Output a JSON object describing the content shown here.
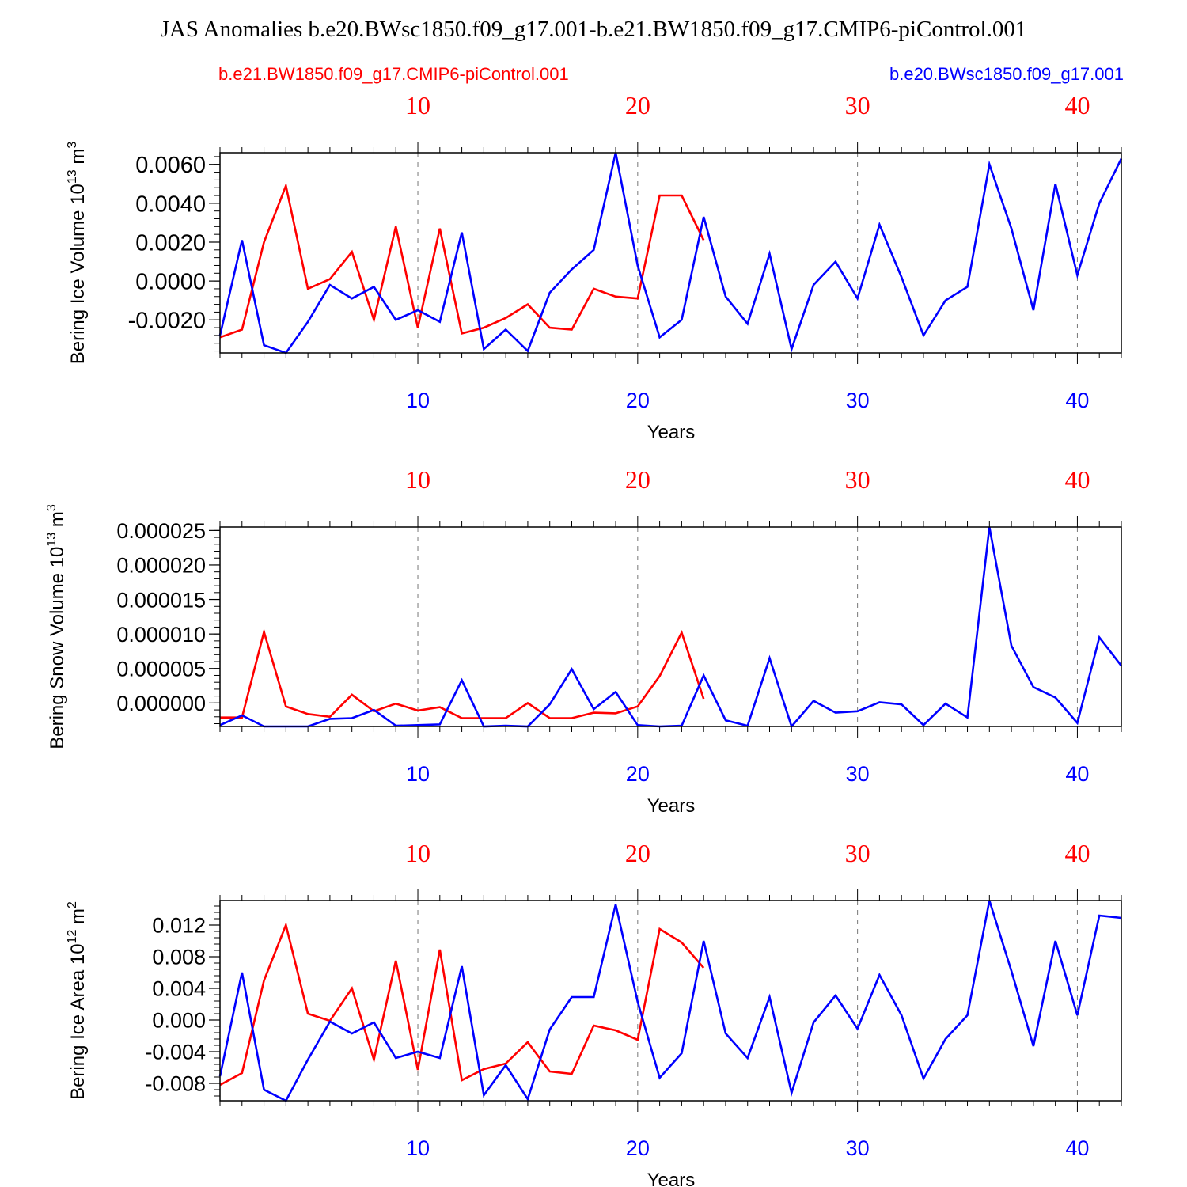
{
  "figure": {
    "title": "JAS Anomalies b.e20.BWsc1850.f09_g17.001-b.e21.BW1850.f09_g17.CMIP6-piControl.001",
    "legend_red": "b.e21.BW1850.f09_g17.CMIP6-piControl.001",
    "legend_blue": "b.e20.BWsc1850.f09_g17.001",
    "colors": {
      "red": "#ff0000",
      "blue": "#0000ff"
    }
  },
  "chart_data": [
    {
      "type": "line",
      "name": "ice-volume",
      "ylabel": "Bering Ice Volume 10",
      "ylabel_exp": "13",
      "ylabel_unit": " m",
      "ylabel_unit_exp": "3",
      "xlabel": "Years",
      "xlim": [
        1,
        42
      ],
      "ylim": [
        -0.0037,
        0.0066
      ],
      "yticks": [
        -0.002,
        0.0,
        0.002,
        0.004,
        0.006
      ],
      "ytick_labels": [
        "-0.0020",
        "0.0000",
        "0.0020",
        "0.0040",
        "0.0060"
      ],
      "xticks": [
        10,
        20,
        30,
        40
      ],
      "xtick_labels": [
        "10",
        "20",
        "30",
        "40"
      ],
      "series": [
        {
          "name": "b.e21.BW1850.f09_g17.CMIP6-piControl.001",
          "color": "red",
          "values": [
            -0.0029,
            -0.0025,
            0.002,
            0.0049,
            -0.0004,
            0.0001,
            0.0015,
            -0.002,
            0.0028,
            -0.0024,
            0.0027,
            -0.0027,
            -0.0024,
            -0.0019,
            -0.0012,
            -0.0024,
            -0.0025,
            -0.0004,
            -0.0008,
            -0.0009,
            0.0044,
            0.0044,
            0.0021
          ]
        },
        {
          "name": "b.e20.BWsc1850.f09_g17.001",
          "color": "blue",
          "values": [
            -0.0028,
            0.0021,
            -0.0033,
            -0.0037,
            -0.0021,
            -0.0002,
            -0.0009,
            -0.0003,
            -0.002,
            -0.0015,
            -0.0021,
            0.0025,
            -0.0035,
            -0.0025,
            -0.0036,
            -0.0006,
            0.0006,
            0.0016,
            0.0066,
            0.0008,
            -0.0029,
            -0.002,
            0.0033,
            -0.0008,
            -0.0022,
            0.0014,
            -0.0035,
            -0.0002,
            0.001,
            -0.0009,
            0.0029,
            0.0002,
            -0.0028,
            -0.001,
            -0.0003,
            0.006,
            0.0027,
            -0.0015,
            0.005,
            0.0003,
            0.004,
            0.0063
          ]
        }
      ]
    },
    {
      "type": "line",
      "name": "snow-volume",
      "ylabel": "Bering Snow Volume 10",
      "ylabel_exp": "13",
      "ylabel_unit": " m",
      "ylabel_unit_exp": "3",
      "xlabel": "Years",
      "xlim": [
        1,
        42
      ],
      "ylim": [
        -3.4e-06,
        2.55e-05
      ],
      "yticks": [
        0.0,
        5e-06,
        1e-05,
        1.5e-05,
        2e-05,
        2.5e-05
      ],
      "ytick_labels": [
        "0.000000",
        "0.000005",
        "0.000010",
        "0.000015",
        "0.000020",
        "0.000025"
      ],
      "xticks": [
        10,
        20,
        30,
        40
      ],
      "xtick_labels": [
        "10",
        "20",
        "30",
        "40"
      ],
      "series": [
        {
          "name": "b.e21.BW1850.f09_g17.CMIP6-piControl.001",
          "color": "red",
          "values": [
            -2.1e-06,
            -2.1e-06,
            1.03e-05,
            -5e-07,
            -1.6e-06,
            -2e-06,
            1.2e-06,
            -1.2e-06,
            -1e-07,
            -1.1e-06,
            -6e-07,
            -2.2e-06,
            -2.2e-06,
            -2.2e-06,
            0.0,
            -2.2e-06,
            -2.2e-06,
            -1.4e-06,
            -1.5e-06,
            -5e-07,
            3.9e-06,
            1.02e-05,
            6e-07
          ]
        },
        {
          "name": "b.e20.BWsc1850.f09_g17.001",
          "color": "blue",
          "values": [
            -3.2e-06,
            -1.8e-06,
            -3.4e-06,
            -3.4e-06,
            -3.4e-06,
            -2.3e-06,
            -2.2e-06,
            -1e-06,
            -3.3e-06,
            -3.2e-06,
            -3.1e-06,
            3.3e-06,
            -3.4e-06,
            -3.3e-06,
            -3.4e-06,
            -2e-07,
            4.9e-06,
            -9e-07,
            1.6e-06,
            -3.2e-06,
            -3.4e-06,
            -3.3e-06,
            4e-06,
            -2.5e-06,
            -3.3e-06,
            6.5e-06,
            -3.4e-06,
            3e-07,
            -1.4e-06,
            -1.2e-06,
            1e-07,
            -2e-07,
            -3.2e-06,
            -1e-07,
            -2.1e-06,
            2.55e-05,
            8.3e-06,
            2.3e-06,
            8e-07,
            -2.9e-06,
            9.5e-06,
            5.4e-06
          ]
        }
      ]
    },
    {
      "type": "line",
      "name": "ice-area",
      "ylabel": "Bering Ice Area 10",
      "ylabel_exp": "12",
      "ylabel_unit": " m",
      "ylabel_unit_exp": "2",
      "xlabel": "Years",
      "xlim": [
        1,
        42
      ],
      "ylim": [
        -0.0102,
        0.0151
      ],
      "yticks": [
        -0.008,
        -0.004,
        0.0,
        0.004,
        0.008,
        0.012
      ],
      "ytick_labels": [
        "-0.008",
        "-0.004",
        "0.000",
        "0.004",
        "0.008",
        "0.012"
      ],
      "xticks": [
        10,
        20,
        30,
        40
      ],
      "xtick_labels": [
        "10",
        "20",
        "30",
        "40"
      ],
      "series": [
        {
          "name": "b.e21.BW1850.f09_g17.CMIP6-piControl.001",
          "color": "red",
          "values": [
            -0.0082,
            -0.0067,
            0.005,
            0.012,
            0.0008,
            -0.0001,
            0.004,
            -0.005,
            0.0075,
            -0.0063,
            0.0089,
            -0.0076,
            -0.0062,
            -0.0055,
            -0.0028,
            -0.0065,
            -0.0068,
            -0.0007,
            -0.0013,
            -0.0025,
            0.0115,
            0.0098,
            0.0066
          ]
        },
        {
          "name": "b.e20.BWsc1850.f09_g17.001",
          "color": "blue",
          "values": [
            -0.0071,
            0.006,
            -0.0088,
            -0.0102,
            -0.005,
            -0.0002,
            -0.0017,
            -0.0003,
            -0.0048,
            -0.004,
            -0.0048,
            0.0068,
            -0.0095,
            -0.0057,
            -0.01,
            -0.0012,
            0.0029,
            0.0029,
            0.0146,
            0.0023,
            -0.0073,
            -0.0042,
            0.01,
            -0.0017,
            -0.0048,
            0.0029,
            -0.0092,
            -0.0003,
            0.0031,
            -0.0011,
            0.0057,
            0.0006,
            -0.0074,
            -0.0024,
            0.0006,
            0.0151,
            0.0062,
            -0.0033,
            0.01,
            0.0006,
            0.0132,
            0.0129
          ]
        }
      ]
    }
  ]
}
